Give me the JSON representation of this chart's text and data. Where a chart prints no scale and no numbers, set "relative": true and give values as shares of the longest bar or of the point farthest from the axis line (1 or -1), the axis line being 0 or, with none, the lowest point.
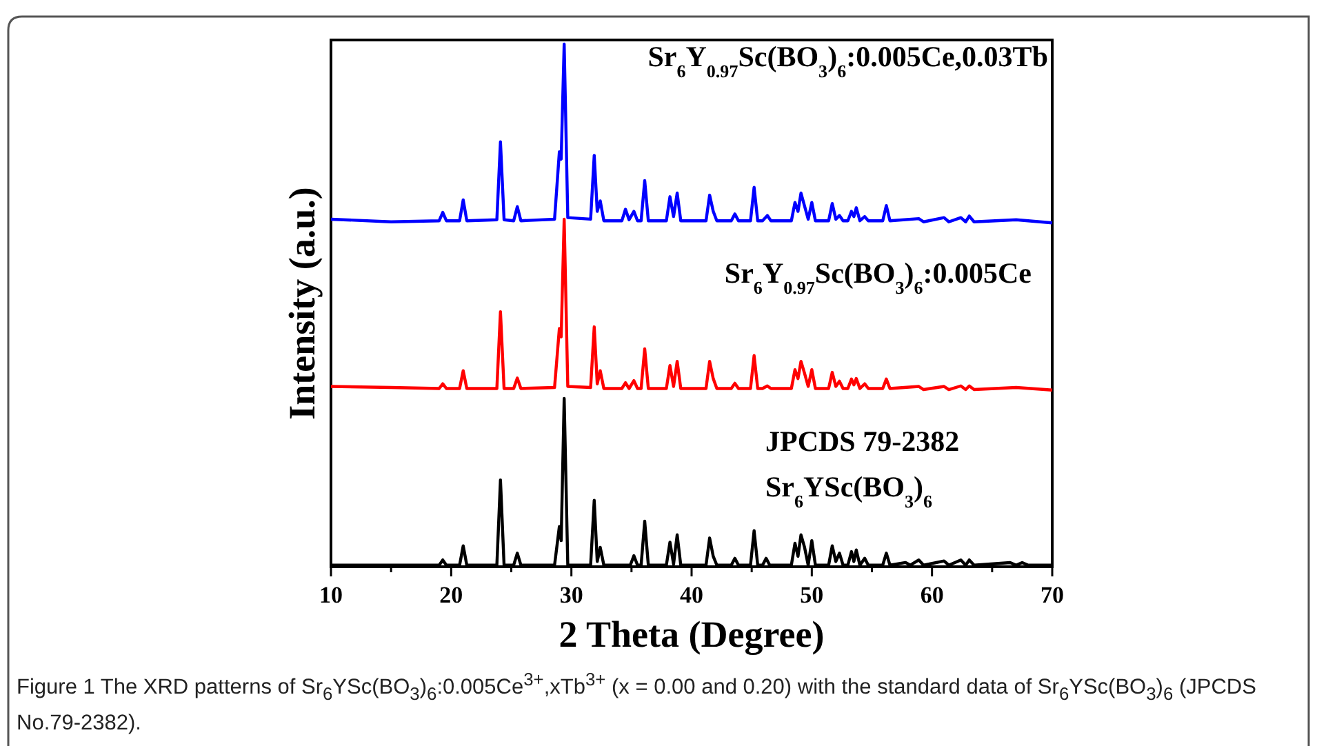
{
  "chart_data": {
    "type": "line",
    "relative": true,
    "xlabel": "2 Theta (Degree)",
    "ylabel": "Intensity (a.u.)",
    "xlim": [
      10,
      70
    ],
    "xticks": [
      10,
      {
        "value": 15,
        "label": null
      },
      20,
      {
        "value": 25,
        "label": null
      },
      30,
      {
        "value": 35,
        "label": null
      },
      40,
      {
        "value": 45,
        "label": null
      },
      50,
      {
        "value": 55,
        "label": null
      },
      60,
      {
        "value": 65,
        "label": null
      },
      70
    ],
    "grid": false,
    "marker": "none",
    "line_style": "solid",
    "annotations": [
      "Figure 1 The XRD patterns of Sr$_{6}$YSc(BO$_{3}$)$_{6}$:0.005Ce$^{3+}$,xTb$^{3+}$ (x = 0.00 and 0.20) with the standard data of Sr$_{6}$YSc(BO$_{3}$)$_{6}$ (JPCDS No.79-2382)."
    ],
    "series": [
      {
        "name": "Sr$_{6}$Y$_{0.97}$Sc(BO$_{3}$)$_{6}$:0.005Ce,0.03Tb",
        "color": "#0000ff",
        "x": [
          10,
          15,
          19.0,
          19.3,
          19.6,
          20.7,
          21.0,
          21.3,
          23.8,
          24.1,
          24.4,
          25.2,
          25.5,
          25.8,
          28.6,
          29.0,
          29.15,
          29.4,
          29.7,
          31.6,
          31.9,
          32.15,
          32.4,
          32.7,
          34.2,
          34.5,
          34.8,
          35.2,
          35.5,
          35.8,
          36.1,
          36.4,
          37.9,
          38.2,
          38.5,
          38.8,
          39.1,
          41.2,
          41.5,
          41.8,
          42.1,
          43.3,
          43.6,
          43.9,
          44.9,
          45.2,
          45.5,
          45.9,
          46.3,
          46.6,
          48.3,
          48.6,
          48.85,
          49.1,
          49.4,
          49.7,
          50.0,
          50.3,
          51.4,
          51.7,
          52.0,
          52.3,
          52.6,
          53.0,
          53.3,
          53.5,
          53.7,
          54.0,
          54.4,
          54.7,
          55.9,
          56.2,
          56.5,
          58.9,
          59.3,
          61.0,
          61.4,
          62.4,
          62.8,
          63.1,
          63.5,
          67.0,
          70
        ],
        "values": [
          0.665,
          0.66,
          0.662,
          0.678,
          0.662,
          0.662,
          0.702,
          0.662,
          0.664,
          0.813,
          0.664,
          0.662,
          0.689,
          0.662,
          0.665,
          0.794,
          0.78,
          1,
          0.668,
          0.665,
          0.787,
          0.68,
          0.7,
          0.662,
          0.662,
          0.684,
          0.664,
          0.68,
          0.662,
          0.662,
          0.739,
          0.662,
          0.662,
          0.708,
          0.67,
          0.715,
          0.662,
          0.662,
          0.711,
          0.68,
          0.662,
          0.662,
          0.675,
          0.662,
          0.662,
          0.726,
          0.662,
          0.662,
          0.672,
          0.662,
          0.662,
          0.697,
          0.68,
          0.715,
          0.69,
          0.665,
          0.697,
          0.662,
          0.662,
          0.695,
          0.665,
          0.672,
          0.662,
          0.662,
          0.68,
          0.67,
          0.687,
          0.662,
          0.67,
          0.662,
          0.662,
          0.691,
          0.662,
          0.666,
          0.66,
          0.668,
          0.66,
          0.668,
          0.66,
          0.671,
          0.66,
          0.664,
          0.658
        ]
      },
      {
        "name": "Sr$_{6}$Y$_{0.97}$Sc(BO$_{3}$)$_{6}$:0.005Ce",
        "color": "#ff0000",
        "x": [
          10,
          15,
          19.0,
          19.3,
          19.6,
          20.7,
          21.0,
          21.3,
          23.8,
          24.1,
          24.4,
          25.2,
          25.5,
          25.8,
          28.6,
          29.0,
          29.15,
          29.4,
          29.7,
          31.6,
          31.9,
          32.15,
          32.4,
          32.7,
          34.2,
          34.5,
          34.8,
          35.2,
          35.5,
          35.8,
          36.1,
          36.4,
          37.9,
          38.2,
          38.5,
          38.8,
          39.1,
          41.2,
          41.5,
          41.8,
          42.1,
          43.3,
          43.6,
          43.9,
          44.9,
          45.2,
          45.5,
          45.9,
          46.3,
          46.6,
          48.3,
          48.6,
          48.85,
          49.1,
          49.4,
          49.7,
          50.0,
          50.3,
          51.4,
          51.7,
          52.0,
          52.3,
          52.6,
          53.0,
          53.3,
          53.5,
          53.7,
          54.0,
          54.4,
          54.7,
          55.9,
          56.2,
          56.5,
          58.9,
          59.3,
          61.0,
          61.4,
          62.4,
          62.8,
          63.1,
          63.5,
          67.0,
          70
        ],
        "values": [
          0.345,
          0.343,
          0.341,
          0.35,
          0.341,
          0.341,
          0.375,
          0.341,
          0.341,
          0.488,
          0.341,
          0.341,
          0.361,
          0.341,
          0.343,
          0.456,
          0.44,
          0.665,
          0.345,
          0.343,
          0.459,
          0.35,
          0.375,
          0.341,
          0.341,
          0.352,
          0.341,
          0.356,
          0.341,
          0.341,
          0.417,
          0.341,
          0.341,
          0.385,
          0.345,
          0.393,
          0.341,
          0.341,
          0.393,
          0.36,
          0.341,
          0.341,
          0.351,
          0.341,
          0.341,
          0.404,
          0.341,
          0.341,
          0.346,
          0.341,
          0.341,
          0.377,
          0.36,
          0.393,
          0.37,
          0.345,
          0.377,
          0.341,
          0.341,
          0.372,
          0.345,
          0.355,
          0.341,
          0.341,
          0.359,
          0.348,
          0.36,
          0.341,
          0.35,
          0.341,
          0.341,
          0.359,
          0.341,
          0.345,
          0.339,
          0.345,
          0.339,
          0.346,
          0.339,
          0.346,
          0.339,
          0.343,
          0.338
        ]
      },
      {
        "name": "JPCDS 79-2382\nSr$_{6}$YSc(BO$_{3}$)$_{6}$",
        "color": "#000000",
        "x": [
          10,
          19.0,
          19.3,
          19.6,
          20.7,
          21.0,
          21.3,
          23.8,
          24.1,
          24.4,
          25.2,
          25.5,
          25.8,
          28.6,
          29.0,
          29.15,
          29.4,
          29.7,
          31.6,
          31.9,
          32.15,
          32.4,
          32.7,
          34.9,
          35.2,
          35.5,
          35.8,
          36.1,
          36.4,
          37.9,
          38.2,
          38.5,
          38.8,
          39.1,
          41.2,
          41.5,
          41.8,
          42.1,
          43.3,
          43.6,
          43.9,
          44.9,
          45.2,
          45.5,
          45.9,
          46.2,
          46.5,
          48.3,
          48.6,
          48.85,
          49.1,
          49.4,
          49.7,
          50.0,
          50.3,
          51.4,
          51.7,
          52.0,
          52.3,
          52.6,
          53.0,
          53.3,
          53.5,
          53.7,
          54.0,
          54.4,
          54.7,
          55.9,
          56.2,
          56.5,
          57.8,
          58.2,
          58.9,
          59.3,
          61.0,
          61.4,
          62.4,
          62.8,
          63.1,
          63.5,
          66.5,
          67.0,
          67.5,
          68,
          70
        ],
        "values": [
          0.003,
          0.003,
          0.013,
          0.003,
          0.003,
          0.04,
          0.003,
          0.003,
          0.166,
          0.003,
          0.003,
          0.026,
          0.003,
          0.003,
          0.077,
          0.05,
          0.322,
          0.003,
          0.003,
          0.127,
          0.01,
          0.037,
          0.003,
          0.003,
          0.021,
          0.003,
          0.003,
          0.087,
          0.003,
          0.003,
          0.047,
          0.005,
          0.061,
          0.003,
          0.003,
          0.055,
          0.02,
          0.003,
          0.003,
          0.016,
          0.003,
          0.003,
          0.069,
          0.003,
          0.003,
          0.016,
          0.003,
          0.003,
          0.045,
          0.02,
          0.061,
          0.037,
          0.003,
          0.05,
          0.003,
          0.003,
          0.04,
          0.01,
          0.026,
          0.003,
          0.003,
          0.029,
          0.01,
          0.032,
          0.003,
          0.016,
          0.003,
          0.003,
          0.026,
          0.003,
          0.008,
          0.003,
          0.013,
          0.003,
          0.011,
          0.003,
          0.013,
          0.003,
          0.013,
          0.003,
          0.008,
          0.003,
          0.008,
          0.003,
          0.003
        ]
      }
    ]
  }
}
